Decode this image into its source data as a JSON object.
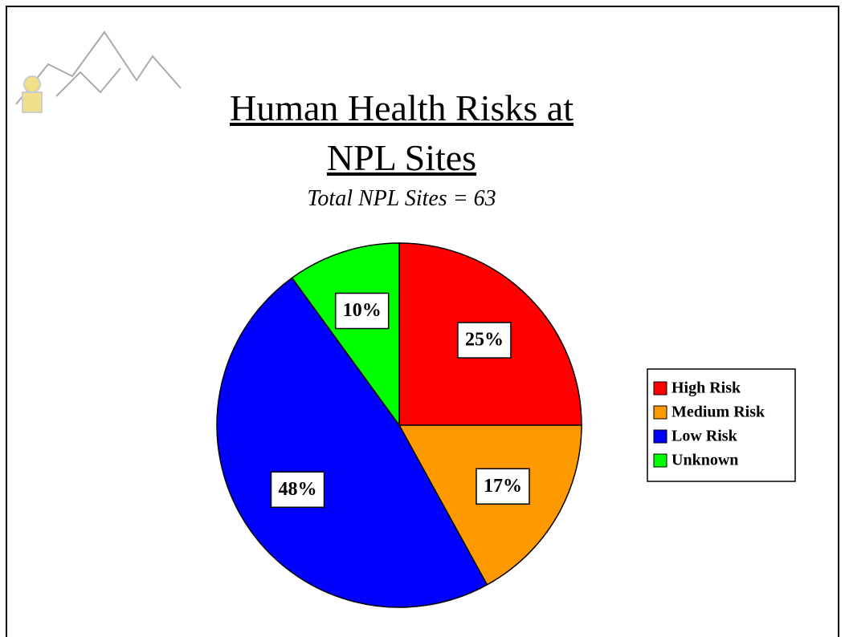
{
  "chart_data": {
    "type": "pie",
    "title": "Human Health Risks at NPL Sites",
    "subtitle": "Total NPL Sites = 63",
    "categories": [
      "High Risk",
      "Medium Risk",
      "Low Risk",
      "Unknown"
    ],
    "values": [
      25,
      17,
      48,
      10
    ],
    "value_labels": [
      "25%",
      "17%",
      "48%",
      "10%"
    ],
    "colors": [
      "#ff0000",
      "#ff9900",
      "#0000ff",
      "#00ff00"
    ],
    "legend": "right"
  }
}
